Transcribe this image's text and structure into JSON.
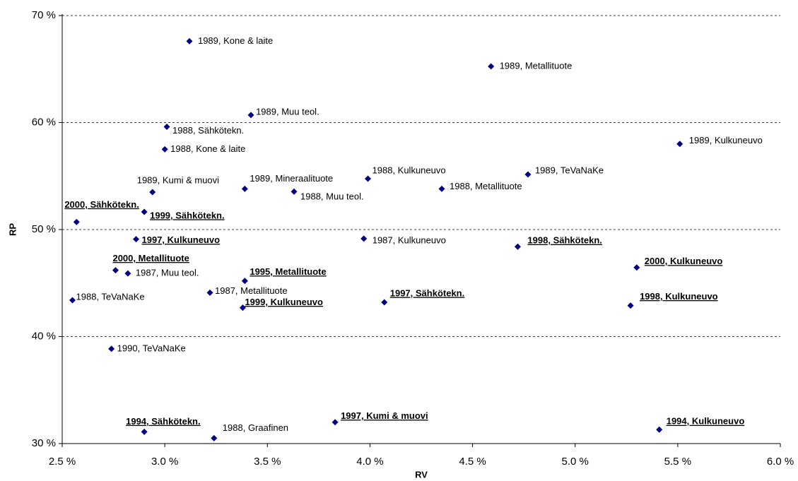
{
  "chart_data": {
    "type": "scatter",
    "x_label": "RV",
    "y_label": "RP",
    "color": "#000080",
    "grid": true,
    "xlim": [
      2.5,
      6.0
    ],
    "ylim": [
      30,
      70
    ],
    "xticks": [
      {
        "value": 2.5,
        "label": "2.5 %"
      },
      {
        "value": 3.0,
        "label": "3.0 %"
      },
      {
        "value": 3.5,
        "label": "3.5 %"
      },
      {
        "value": 4.0,
        "label": "4.0 %"
      },
      {
        "value": 4.5,
        "label": "4.5 %"
      },
      {
        "value": 5.0,
        "label": "5.0 %"
      },
      {
        "value": 5.5,
        "label": "5.5 %"
      },
      {
        "value": 6.0,
        "label": "6.0 %"
      }
    ],
    "yticks": [
      {
        "value": 30,
        "label": "30 %"
      },
      {
        "value": 40,
        "label": "40 %"
      },
      {
        "value": 50,
        "label": "50 %"
      },
      {
        "value": 60,
        "label": "60 %"
      },
      {
        "value": 70,
        "label": "70 %"
      }
    ],
    "labels": [
      "1989, Kone & laite",
      "1989, Metallituote",
      "1989, Muu teol.",
      "1988, Sähkötekn.",
      "1988, Kone & laite",
      "1989, Kulkuneuvo",
      "1988, Kulkuneuvo",
      "1989, TeVaNaKe",
      "1989, Kumi & muovi",
      "1989, Mineraalituote",
      "1988, Muu teol.",
      "1988, Metallituote",
      "2000, Sähkötekn.",
      "1999, Sähkötekn.",
      "1997, Kulkuneuvo",
      "1987, Kulkuneuvo",
      "1998, Sähkötekn.",
      "2000, Metallituote",
      "1987, Muu teol.",
      "2000, Kulkuneuvo",
      "1995, Metallituote",
      "1987, Metallituote",
      "1988, TeVaNaKe",
      "1997, Sähkötekn.",
      "1998, Kulkuneuvo",
      "1999, Kulkuneuvo",
      "1990, TeVaNaKe",
      "1994, Sähkötekn.",
      "1988, Graafinen",
      "1997, Kumi & muovi",
      "1994, Kulkuneuvo"
    ],
    "x": [
      3.12,
      4.59,
      3.42,
      3.01,
      3.0,
      5.51,
      3.99,
      4.77,
      2.94,
      3.39,
      3.63,
      4.35,
      2.57,
      2.9,
      2.86,
      3.97,
      4.72,
      2.76,
      2.82,
      5.3,
      3.39,
      3.22,
      2.55,
      4.07,
      5.27,
      3.38,
      2.74,
      2.9,
      3.24,
      3.83,
      5.41
    ],
    "values": [
      67.6,
      65.25,
      60.7,
      59.6,
      57.5,
      58.0,
      54.75,
      55.15,
      53.5,
      53.8,
      53.55,
      53.8,
      50.7,
      51.65,
      49.1,
      49.15,
      48.4,
      46.2,
      45.9,
      46.45,
      45.2,
      44.1,
      43.4,
      43.2,
      42.9,
      42.7,
      38.85,
      31.1,
      30.5,
      32.0,
      31.3
    ],
    "bold": [
      false,
      false,
      false,
      false,
      false,
      false,
      false,
      false,
      false,
      false,
      false,
      false,
      true,
      true,
      true,
      false,
      true,
      true,
      false,
      true,
      true,
      false,
      false,
      true,
      true,
      true,
      false,
      true,
      false,
      true,
      true
    ]
  }
}
